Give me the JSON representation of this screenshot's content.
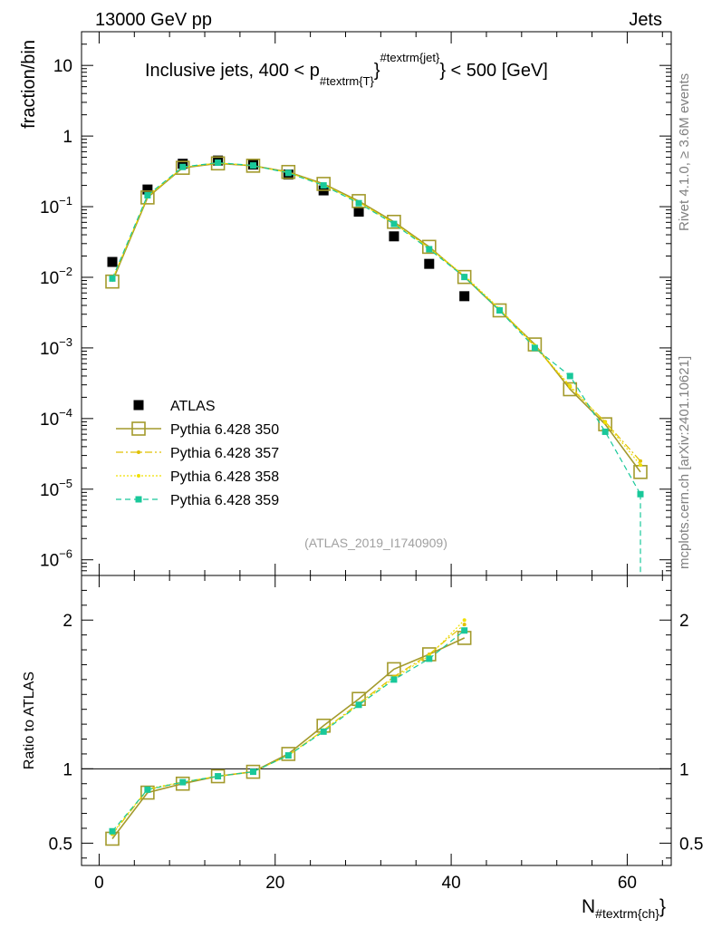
{
  "header": {
    "energy_label": "13000 GeV pp",
    "category_label": "Jets",
    "side_rivet": "Rivet 4.1.0, ≥ 3.6M events",
    "side_mcplots": "mcplots.cern.ch [arXiv:2401.10621]",
    "analysis_id": "(ATLAS_2019_I1740909)"
  },
  "chart_data": [
    {
      "type": "scatter",
      "panel": "main",
      "title_main": "Inclusive jets, 400 < p",
      "title_sub": "#textrm{T}",
      "title_sup": "#textrm{jet}",
      "title_end": "} < 500 [GeV]",
      "ylabel": "fraction/bin",
      "yscale": "log",
      "ylim": [
        6e-07,
        30
      ],
      "xlim": [
        -2,
        65
      ],
      "ytick_labels": [
        {
          "base": "10",
          "exp": "",
          "value": 10
        },
        {
          "base": "1",
          "exp": "",
          "value": 1
        },
        {
          "base": "10",
          "exp": "−1",
          "value": 0.1
        },
        {
          "base": "10",
          "exp": "−2",
          "value": 0.01
        },
        {
          "base": "10",
          "exp": "−3",
          "value": 0.001
        },
        {
          "base": "10",
          "exp": "−4",
          "value": 0.0001
        },
        {
          "base": "10",
          "exp": "−5",
          "value": 1e-05
        },
        {
          "base": "10",
          "exp": "−6",
          "value": 1e-06
        }
      ],
      "x": [
        1.5,
        5.5,
        9.5,
        13.5,
        17.5,
        21.5,
        25.5,
        29.5,
        33.5,
        37.5,
        41.5,
        45.5,
        49.5,
        53.5,
        57.5,
        61.5
      ],
      "series": [
        {
          "name": "ATLAS",
          "color": "#000000",
          "style": "data",
          "x": [
            1.5,
            5.5,
            9.5,
            13.5,
            17.5,
            21.5,
            25.5,
            29.5,
            33.5,
            37.5,
            41.5
          ],
          "values": [
            0.0165,
            0.175,
            0.405,
            0.45,
            0.395,
            0.285,
            0.17,
            0.085,
            0.038,
            0.0155,
            0.0054
          ]
        },
        {
          "name": "Pythia 6.428 350",
          "color": "#a39a2c",
          "style": "solid-square",
          "values": [
            0.0087,
            0.135,
            0.355,
            0.41,
            0.38,
            0.31,
            0.21,
            0.12,
            0.061,
            0.027,
            0.0101,
            0.0034,
            0.00112,
            0.00026,
            8.3e-05,
            1.75e-05
          ]
        },
        {
          "name": "Pythia 6.428 357",
          "color": "#e0c000",
          "style": "dashdot",
          "values": [
            0.0092,
            0.138,
            0.36,
            0.415,
            0.382,
            0.305,
            0.205,
            0.116,
            0.059,
            0.026,
            0.0103,
            0.0035,
            0.00105,
            0.00028,
            9e-05,
            2.5e-05
          ]
        },
        {
          "name": "Pythia 6.428 358",
          "color": "#f0e000",
          "style": "dotted",
          "values": [
            0.0093,
            0.14,
            0.362,
            0.416,
            0.381,
            0.304,
            0.204,
            0.115,
            0.058,
            0.026,
            0.0106,
            0.0036,
            0.00108,
            0.00029,
            8.8e-05,
            2.2e-05
          ]
        },
        {
          "name": "Pythia 6.428 359",
          "color": "#19c89a",
          "style": "dashed-dot",
          "values": [
            0.0096,
            0.145,
            0.365,
            0.42,
            0.383,
            0.3,
            0.2,
            0.112,
            0.057,
            0.025,
            0.0101,
            0.0034,
            0.001,
            0.0004,
            6.5e-05,
            8.5e-06
          ]
        }
      ]
    },
    {
      "type": "line",
      "panel": "ratio",
      "ylabel": "Ratio to ATLAS",
      "xlabel": "N",
      "xlabel_sub": "#textrm{ch}",
      "ylim": [
        0.35,
        2.3
      ],
      "xlim": [
        -2,
        65
      ],
      "x_ticks": [
        0,
        20,
        40,
        60
      ],
      "x_tick_labels": [
        "0",
        "20",
        "40",
        "60"
      ],
      "y_ticks": [
        0.5,
        1,
        2
      ],
      "y_tick_labels": [
        "0.5",
        "1",
        "2"
      ],
      "x": [
        1.5,
        5.5,
        9.5,
        13.5,
        17.5,
        21.5,
        25.5,
        29.5,
        33.5,
        37.5,
        41.5
      ],
      "series": [
        {
          "name": "Pythia 6.428 350",
          "color": "#a39a2c",
          "style": "solid-square",
          "values": [
            0.53,
            0.84,
            0.9,
            0.95,
            0.98,
            1.1,
            1.29,
            1.47,
            1.67,
            1.77,
            1.88
          ]
        },
        {
          "name": "Pythia 6.428 357",
          "color": "#e0c000",
          "style": "dashdot",
          "values": [
            0.56,
            0.86,
            0.91,
            0.95,
            0.98,
            1.09,
            1.26,
            1.44,
            1.62,
            1.77,
            1.97
          ]
        },
        {
          "name": "Pythia 6.428 358",
          "color": "#f0e000",
          "style": "dotted",
          "values": [
            0.565,
            0.865,
            0.912,
            0.95,
            0.98,
            1.09,
            1.26,
            1.43,
            1.61,
            1.76,
            2.0
          ]
        },
        {
          "name": "Pythia 6.428 359",
          "color": "#19c89a",
          "style": "dashed-dot",
          "values": [
            0.58,
            0.86,
            0.91,
            0.95,
            0.98,
            1.09,
            1.25,
            1.43,
            1.6,
            1.74,
            1.93
          ]
        }
      ]
    }
  ]
}
